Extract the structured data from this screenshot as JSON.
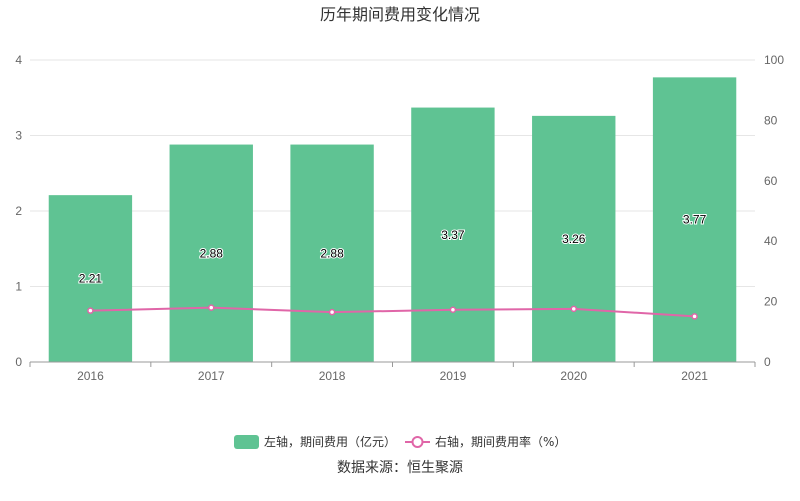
{
  "chart_data": {
    "type": "bar",
    "title": "历年期间费用变化情况",
    "categories": [
      "2016",
      "2017",
      "2018",
      "2019",
      "2020",
      "2021"
    ],
    "series": [
      {
        "name": "左轴，期间费用（亿元）",
        "type": "bar",
        "axis": "left",
        "values": [
          2.21,
          2.88,
          2.88,
          3.37,
          3.26,
          3.77
        ],
        "data_labels": [
          "2.21",
          "2.88",
          "2.88",
          "3.37",
          "3.26",
          "3.77"
        ],
        "color": "#5fc393"
      },
      {
        "name": "右轴，期间费用率（%）",
        "type": "line",
        "axis": "right",
        "values": [
          17.0,
          18.0,
          16.5,
          17.3,
          17.6,
          15.1
        ],
        "color": "#e066a8"
      }
    ],
    "y_left": {
      "min": 0,
      "max": 4,
      "ticks": [
        "0",
        "1",
        "2",
        "3",
        "4"
      ]
    },
    "y_right": {
      "min": 0,
      "max": 100,
      "ticks": [
        "0",
        "20",
        "40",
        "60",
        "80",
        "100"
      ]
    },
    "grid": true,
    "legend_position": "bottom"
  },
  "legend": {
    "bar_label": "左轴，期间费用（亿元）",
    "line_label": "右轴，期间费用率（%）"
  },
  "source": "数据来源：恒生聚源"
}
